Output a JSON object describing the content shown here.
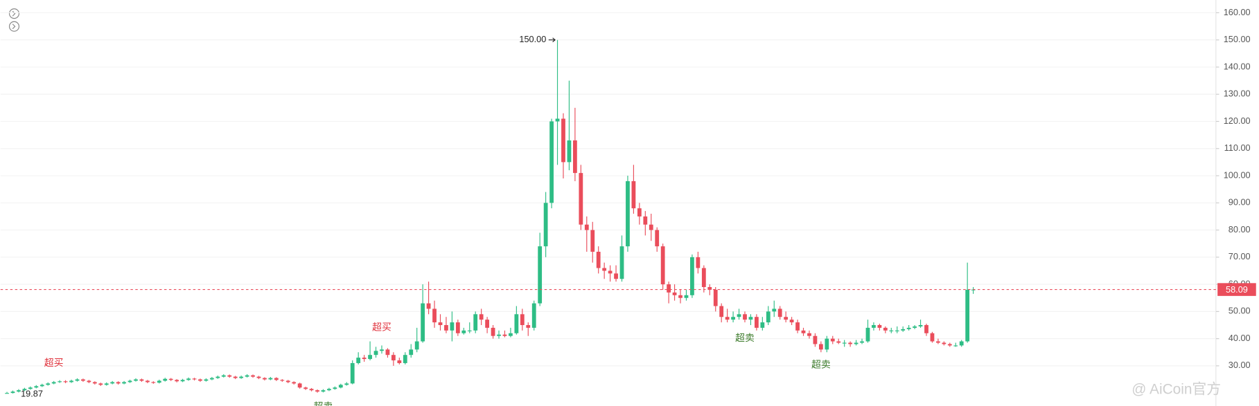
{
  "chart_data": {
    "type": "candlestick",
    "ylim": [
      15.2,
      164.7
    ],
    "yticks": [
      {
        "value": 30,
        "label": "30.00"
      },
      {
        "value": 40,
        "label": "40.00"
      },
      {
        "value": 50,
        "label": "50.00"
      },
      {
        "value": 60,
        "label": "60.00"
      },
      {
        "value": 70,
        "label": "70.00"
      },
      {
        "value": 80,
        "label": "80.00"
      },
      {
        "value": 90,
        "label": "90.00"
      },
      {
        "value": 100,
        "label": "100.00"
      },
      {
        "value": 110,
        "label": "110.00"
      },
      {
        "value": 120,
        "label": "120.00"
      },
      {
        "value": 130,
        "label": "130.00"
      },
      {
        "value": 140,
        "label": "140.00"
      },
      {
        "value": 150,
        "label": "150.00"
      },
      {
        "value": 160,
        "label": "160.00"
      }
    ],
    "grid": true,
    "up_color": "#2ebd85",
    "down_color": "#ea4d5b",
    "ohlc": [
      [
        19.9,
        20.4,
        19.87,
        20
      ],
      [
        20,
        20.9,
        19.8,
        20.5
      ],
      [
        20.5,
        21.4,
        20.2,
        21
      ],
      [
        21,
        21.9,
        20.7,
        21.5
      ],
      [
        21.5,
        22.4,
        21.2,
        22
      ],
      [
        22,
        22.9,
        21.7,
        22.5
      ],
      [
        22.5,
        23.4,
        22.2,
        23
      ],
      [
        23,
        23.9,
        22.7,
        23.5
      ],
      [
        23.5,
        24.4,
        23.2,
        24
      ],
      [
        24,
        24.7,
        23.7,
        24.3
      ],
      [
        24.3,
        24.7,
        23.6,
        24
      ],
      [
        24,
        24.9,
        23.7,
        24.5
      ],
      [
        24.5,
        25.4,
        24.2,
        25
      ],
      [
        25,
        25.3,
        24.1,
        24.5
      ],
      [
        24.5,
        24.8,
        23.6,
        24
      ],
      [
        24,
        24.3,
        23.1,
        23.5
      ],
      [
        23.5,
        23.8,
        22.6,
        23
      ],
      [
        23,
        23.9,
        22.7,
        23.5
      ],
      [
        23.5,
        24.4,
        23.2,
        24
      ],
      [
        24,
        24.3,
        23.1,
        23.5
      ],
      [
        23.5,
        24.4,
        23.2,
        24
      ],
      [
        24,
        24.9,
        23.7,
        24.5
      ],
      [
        24.5,
        25.4,
        24.2,
        25
      ],
      [
        25,
        25.3,
        24.1,
        24.5
      ],
      [
        24.5,
        24.8,
        23.6,
        24
      ],
      [
        24,
        24.3,
        23.4,
        23.8
      ],
      [
        23.8,
        24.9,
        23.5,
        24.5
      ],
      [
        24.5,
        25.6,
        24.2,
        25.2
      ],
      [
        25.2,
        25.5,
        24.4,
        24.8
      ],
      [
        24.8,
        25.1,
        23.9,
        24.3
      ],
      [
        24.3,
        25.2,
        24,
        24.8
      ],
      [
        24.8,
        25.7,
        24.5,
        25.3
      ],
      [
        25.3,
        25.6,
        24.6,
        25
      ],
      [
        25,
        25.3,
        24.1,
        24.5
      ],
      [
        24.5,
        25.4,
        24.2,
        25
      ],
      [
        25,
        25.9,
        24.7,
        25.5
      ],
      [
        25.5,
        26.4,
        25.2,
        26
      ],
      [
        26,
        26.9,
        25.7,
        26.5
      ],
      [
        26.5,
        26.8,
        25.6,
        26
      ],
      [
        26,
        26.3,
        25.1,
        25.5
      ],
      [
        25.5,
        26.4,
        25.2,
        26
      ],
      [
        26,
        26.9,
        25.7,
        26.5
      ],
      [
        26.5,
        26.8,
        25.6,
        26
      ],
      [
        26,
        26.3,
        25.1,
        25.5
      ],
      [
        25.5,
        25.8,
        24.6,
        25
      ],
      [
        25,
        25.9,
        24.7,
        25.5
      ],
      [
        25.5,
        25.8,
        24.4,
        24.8
      ],
      [
        24.8,
        25.1,
        24.1,
        24.5
      ],
      [
        24.5,
        24.8,
        23.6,
        24
      ],
      [
        24,
        24.3,
        23.1,
        23.5
      ],
      [
        23.5,
        23.8,
        21.6,
        22
      ],
      [
        22,
        22.3,
        21.1,
        21.5
      ],
      [
        21.5,
        21.8,
        20.6,
        21
      ],
      [
        21,
        21.3,
        20.1,
        20.5
      ],
      [
        20.5,
        21.4,
        20.2,
        21
      ],
      [
        21,
        21.9,
        20.7,
        21.5
      ],
      [
        21.5,
        22.4,
        21.2,
        22
      ],
      [
        22,
        23.4,
        21.7,
        23
      ],
      [
        23,
        24,
        22.7,
        23.5
      ],
      [
        23.5,
        32,
        23.2,
        31
      ],
      [
        31,
        35,
        30.5,
        33
      ],
      [
        33,
        34,
        31.5,
        32.5
      ],
      [
        32.5,
        39,
        32,
        34
      ],
      [
        34,
        37,
        33,
        35.5
      ],
      [
        35.5,
        37.5,
        34.5,
        36
      ],
      [
        36,
        36.5,
        33,
        34
      ],
      [
        34,
        35,
        30,
        32
      ],
      [
        32,
        33,
        30.5,
        31
      ],
      [
        31,
        35,
        30.5,
        34
      ],
      [
        34,
        38,
        33,
        36
      ],
      [
        36,
        44,
        35,
        39
      ],
      [
        39,
        60,
        38.5,
        53
      ],
      [
        53,
        61,
        49,
        51
      ],
      [
        51,
        54,
        44,
        46
      ],
      [
        46,
        49,
        43,
        45
      ],
      [
        45,
        48,
        42,
        43
      ],
      [
        43,
        50,
        39,
        46
      ],
      [
        46,
        47,
        41,
        42
      ],
      [
        42,
        44,
        41.5,
        43
      ],
      [
        43,
        46,
        42,
        43
      ],
      [
        43,
        50,
        42,
        49
      ],
      [
        49,
        51,
        45,
        47
      ],
      [
        47,
        48,
        42,
        44
      ],
      [
        44,
        45,
        40,
        41
      ],
      [
        41,
        43,
        40,
        41.5
      ],
      [
        41.5,
        43,
        40.5,
        41
      ],
      [
        41,
        44,
        40.5,
        42
      ],
      [
        42,
        52,
        41.5,
        49
      ],
      [
        49,
        51,
        43,
        45
      ],
      [
        45,
        46,
        41,
        44
      ],
      [
        44,
        54,
        43,
        53
      ],
      [
        53,
        79,
        52,
        74
      ],
      [
        74,
        94,
        70,
        90
      ],
      [
        90,
        121,
        88,
        120
      ],
      [
        120,
        150,
        104,
        121
      ],
      [
        121,
        123,
        99,
        105
      ],
      [
        105,
        135,
        102,
        113
      ],
      [
        113,
        125,
        98,
        101
      ],
      [
        101,
        104,
        80,
        82
      ],
      [
        82,
        85,
        72,
        80
      ],
      [
        80,
        83,
        68,
        72
      ],
      [
        72,
        74,
        64,
        66
      ],
      [
        66,
        68,
        62,
        65
      ],
      [
        65,
        67,
        61,
        64
      ],
      [
        64,
        67,
        61,
        62
      ],
      [
        62,
        78,
        61,
        74
      ],
      [
        74,
        100,
        72,
        98
      ],
      [
        98,
        104,
        86,
        88
      ],
      [
        88,
        90,
        82,
        85
      ],
      [
        85,
        87,
        78,
        82
      ],
      [
        82,
        86,
        76,
        80
      ],
      [
        80,
        81,
        72,
        74
      ],
      [
        74,
        75,
        58,
        60
      ],
      [
        60,
        61,
        53,
        57
      ],
      [
        57,
        60,
        54,
        56
      ],
      [
        56,
        58,
        53,
        55
      ],
      [
        55,
        58,
        54,
        56
      ],
      [
        56,
        71,
        55,
        70
      ],
      [
        70,
        72,
        64,
        66
      ],
      [
        66,
        67,
        57,
        59
      ],
      [
        59,
        60,
        56,
        58
      ],
      [
        58,
        59,
        50,
        52
      ],
      [
        52,
        53,
        46,
        48
      ],
      [
        48,
        51,
        46,
        47
      ],
      [
        47,
        50,
        46,
        48
      ],
      [
        48,
        51,
        47,
        49
      ],
      [
        49,
        50,
        46,
        47
      ],
      [
        47,
        49,
        45,
        48
      ],
      [
        48,
        49,
        43,
        44
      ],
      [
        44,
        48,
        43,
        46
      ],
      [
        46,
        52,
        45,
        50
      ],
      [
        50,
        54,
        48,
        51
      ],
      [
        51,
        52,
        47,
        48
      ],
      [
        48,
        50,
        46,
        47
      ],
      [
        47,
        48,
        45,
        46
      ],
      [
        46,
        47,
        42,
        43
      ],
      [
        43,
        44,
        41,
        42
      ],
      [
        42,
        43,
        40,
        41
      ],
      [
        41,
        42,
        37,
        38
      ],
      [
        38,
        39,
        35,
        36
      ],
      [
        36,
        41,
        35,
        40
      ],
      [
        40,
        41,
        38,
        39
      ],
      [
        39,
        40,
        38,
        38.5
      ],
      [
        38.5,
        39.5,
        37,
        38.5
      ],
      [
        38.5,
        39,
        37,
        38
      ],
      [
        38,
        39.5,
        37.5,
        38.5
      ],
      [
        38.5,
        40,
        38,
        39
      ],
      [
        39,
        47,
        38.5,
        44
      ],
      [
        44,
        46,
        43,
        45
      ],
      [
        45,
        45.5,
        43,
        44
      ],
      [
        44,
        44.5,
        42,
        43
      ],
      [
        43,
        44,
        42,
        43
      ],
      [
        43,
        44.5,
        42,
        43
      ],
      [
        43,
        44.5,
        42.5,
        43.5
      ],
      [
        43.5,
        45,
        43,
        44
      ],
      [
        44,
        45,
        43.5,
        44.5
      ],
      [
        44.5,
        47,
        44,
        45
      ],
      [
        45,
        45.5,
        41,
        42
      ],
      [
        42,
        42.5,
        38.5,
        39
      ],
      [
        39,
        40,
        38,
        38.5
      ],
      [
        38.5,
        39,
        37.5,
        38
      ],
      [
        38,
        38.5,
        37,
        37.5
      ],
      [
        37.5,
        38.5,
        37,
        37.5
      ],
      [
        37.5,
        39.5,
        37,
        39
      ],
      [
        39,
        68,
        38.5,
        58
      ],
      [
        58,
        59,
        56.5,
        58.09
      ]
    ],
    "last_price": 58.09,
    "max_label": "150.00",
    "min_label": "19.87",
    "signals": [
      "超买",
      "超买",
      "超卖",
      "超卖",
      "超卖"
    ],
    "watermark": "@ AiCoin官方"
  }
}
